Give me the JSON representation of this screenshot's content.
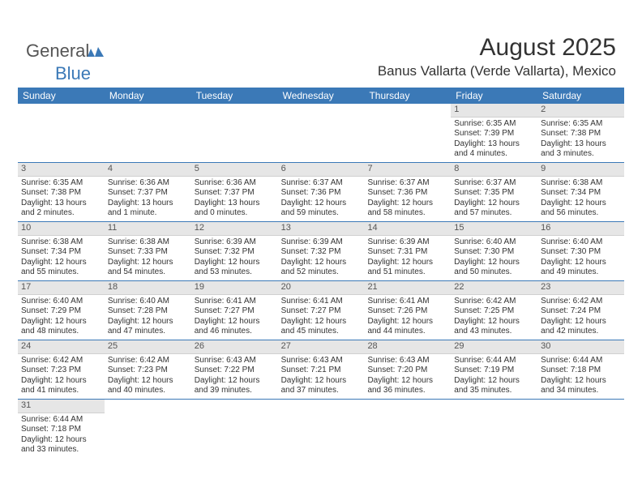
{
  "logo": {
    "general": "General",
    "blue": "Blue"
  },
  "header": {
    "month_title": "August 2025",
    "location": "Banus Vallarta (Verde Vallarta), Mexico"
  },
  "calendar": {
    "day_names": [
      "Sunday",
      "Monday",
      "Tuesday",
      "Wednesday",
      "Thursday",
      "Friday",
      "Saturday"
    ],
    "header_bg": "#3b79b7",
    "header_fg": "#ffffff",
    "daynum_bg": "#e6e6e6",
    "rule_color": "#3b79b7",
    "weeks": [
      [
        {
          "day": "",
          "sunrise": "",
          "sunset": "",
          "daylight": ""
        },
        {
          "day": "",
          "sunrise": "",
          "sunset": "",
          "daylight": ""
        },
        {
          "day": "",
          "sunrise": "",
          "sunset": "",
          "daylight": ""
        },
        {
          "day": "",
          "sunrise": "",
          "sunset": "",
          "daylight": ""
        },
        {
          "day": "",
          "sunrise": "",
          "sunset": "",
          "daylight": ""
        },
        {
          "day": "1",
          "sunrise": "Sunrise: 6:35 AM",
          "sunset": "Sunset: 7:39 PM",
          "daylight": "Daylight: 13 hours and 4 minutes."
        },
        {
          "day": "2",
          "sunrise": "Sunrise: 6:35 AM",
          "sunset": "Sunset: 7:38 PM",
          "daylight": "Daylight: 13 hours and 3 minutes."
        }
      ],
      [
        {
          "day": "3",
          "sunrise": "Sunrise: 6:35 AM",
          "sunset": "Sunset: 7:38 PM",
          "daylight": "Daylight: 13 hours and 2 minutes."
        },
        {
          "day": "4",
          "sunrise": "Sunrise: 6:36 AM",
          "sunset": "Sunset: 7:37 PM",
          "daylight": "Daylight: 13 hours and 1 minute."
        },
        {
          "day": "5",
          "sunrise": "Sunrise: 6:36 AM",
          "sunset": "Sunset: 7:37 PM",
          "daylight": "Daylight: 13 hours and 0 minutes."
        },
        {
          "day": "6",
          "sunrise": "Sunrise: 6:37 AM",
          "sunset": "Sunset: 7:36 PM",
          "daylight": "Daylight: 12 hours and 59 minutes."
        },
        {
          "day": "7",
          "sunrise": "Sunrise: 6:37 AM",
          "sunset": "Sunset: 7:36 PM",
          "daylight": "Daylight: 12 hours and 58 minutes."
        },
        {
          "day": "8",
          "sunrise": "Sunrise: 6:37 AM",
          "sunset": "Sunset: 7:35 PM",
          "daylight": "Daylight: 12 hours and 57 minutes."
        },
        {
          "day": "9",
          "sunrise": "Sunrise: 6:38 AM",
          "sunset": "Sunset: 7:34 PM",
          "daylight": "Daylight: 12 hours and 56 minutes."
        }
      ],
      [
        {
          "day": "10",
          "sunrise": "Sunrise: 6:38 AM",
          "sunset": "Sunset: 7:34 PM",
          "daylight": "Daylight: 12 hours and 55 minutes."
        },
        {
          "day": "11",
          "sunrise": "Sunrise: 6:38 AM",
          "sunset": "Sunset: 7:33 PM",
          "daylight": "Daylight: 12 hours and 54 minutes."
        },
        {
          "day": "12",
          "sunrise": "Sunrise: 6:39 AM",
          "sunset": "Sunset: 7:32 PM",
          "daylight": "Daylight: 12 hours and 53 minutes."
        },
        {
          "day": "13",
          "sunrise": "Sunrise: 6:39 AM",
          "sunset": "Sunset: 7:32 PM",
          "daylight": "Daylight: 12 hours and 52 minutes."
        },
        {
          "day": "14",
          "sunrise": "Sunrise: 6:39 AM",
          "sunset": "Sunset: 7:31 PM",
          "daylight": "Daylight: 12 hours and 51 minutes."
        },
        {
          "day": "15",
          "sunrise": "Sunrise: 6:40 AM",
          "sunset": "Sunset: 7:30 PM",
          "daylight": "Daylight: 12 hours and 50 minutes."
        },
        {
          "day": "16",
          "sunrise": "Sunrise: 6:40 AM",
          "sunset": "Sunset: 7:30 PM",
          "daylight": "Daylight: 12 hours and 49 minutes."
        }
      ],
      [
        {
          "day": "17",
          "sunrise": "Sunrise: 6:40 AM",
          "sunset": "Sunset: 7:29 PM",
          "daylight": "Daylight: 12 hours and 48 minutes."
        },
        {
          "day": "18",
          "sunrise": "Sunrise: 6:40 AM",
          "sunset": "Sunset: 7:28 PM",
          "daylight": "Daylight: 12 hours and 47 minutes."
        },
        {
          "day": "19",
          "sunrise": "Sunrise: 6:41 AM",
          "sunset": "Sunset: 7:27 PM",
          "daylight": "Daylight: 12 hours and 46 minutes."
        },
        {
          "day": "20",
          "sunrise": "Sunrise: 6:41 AM",
          "sunset": "Sunset: 7:27 PM",
          "daylight": "Daylight: 12 hours and 45 minutes."
        },
        {
          "day": "21",
          "sunrise": "Sunrise: 6:41 AM",
          "sunset": "Sunset: 7:26 PM",
          "daylight": "Daylight: 12 hours and 44 minutes."
        },
        {
          "day": "22",
          "sunrise": "Sunrise: 6:42 AM",
          "sunset": "Sunset: 7:25 PM",
          "daylight": "Daylight: 12 hours and 43 minutes."
        },
        {
          "day": "23",
          "sunrise": "Sunrise: 6:42 AM",
          "sunset": "Sunset: 7:24 PM",
          "daylight": "Daylight: 12 hours and 42 minutes."
        }
      ],
      [
        {
          "day": "24",
          "sunrise": "Sunrise: 6:42 AM",
          "sunset": "Sunset: 7:23 PM",
          "daylight": "Daylight: 12 hours and 41 minutes."
        },
        {
          "day": "25",
          "sunrise": "Sunrise: 6:42 AM",
          "sunset": "Sunset: 7:23 PM",
          "daylight": "Daylight: 12 hours and 40 minutes."
        },
        {
          "day": "26",
          "sunrise": "Sunrise: 6:43 AM",
          "sunset": "Sunset: 7:22 PM",
          "daylight": "Daylight: 12 hours and 39 minutes."
        },
        {
          "day": "27",
          "sunrise": "Sunrise: 6:43 AM",
          "sunset": "Sunset: 7:21 PM",
          "daylight": "Daylight: 12 hours and 37 minutes."
        },
        {
          "day": "28",
          "sunrise": "Sunrise: 6:43 AM",
          "sunset": "Sunset: 7:20 PM",
          "daylight": "Daylight: 12 hours and 36 minutes."
        },
        {
          "day": "29",
          "sunrise": "Sunrise: 6:44 AM",
          "sunset": "Sunset: 7:19 PM",
          "daylight": "Daylight: 12 hours and 35 minutes."
        },
        {
          "day": "30",
          "sunrise": "Sunrise: 6:44 AM",
          "sunset": "Sunset: 7:18 PM",
          "daylight": "Daylight: 12 hours and 34 minutes."
        }
      ],
      [
        {
          "day": "31",
          "sunrise": "Sunrise: 6:44 AM",
          "sunset": "Sunset: 7:18 PM",
          "daylight": "Daylight: 12 hours and 33 minutes."
        },
        {
          "day": "",
          "sunrise": "",
          "sunset": "",
          "daylight": ""
        },
        {
          "day": "",
          "sunrise": "",
          "sunset": "",
          "daylight": ""
        },
        {
          "day": "",
          "sunrise": "",
          "sunset": "",
          "daylight": ""
        },
        {
          "day": "",
          "sunrise": "",
          "sunset": "",
          "daylight": ""
        },
        {
          "day": "",
          "sunrise": "",
          "sunset": "",
          "daylight": ""
        },
        {
          "day": "",
          "sunrise": "",
          "sunset": "",
          "daylight": ""
        }
      ]
    ]
  }
}
